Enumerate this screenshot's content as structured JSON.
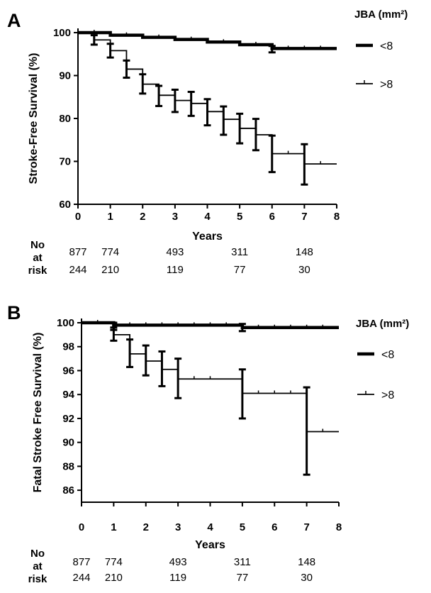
{
  "chart_data": [
    {
      "type": "line",
      "panel_label": "A",
      "xlabel": "Years",
      "ylabel": "Stroke-Free Survival (%)",
      "xlim": [
        0,
        8
      ],
      "ylim": [
        60,
        100
      ],
      "x_ticks": [
        0,
        1,
        2,
        3,
        4,
        5,
        6,
        7,
        8
      ],
      "y_ticks": [
        60,
        70,
        80,
        90,
        100
      ],
      "legend": {
        "title": "JBA (mm²)",
        "position": "right"
      },
      "series": [
        {
          "name": "<8",
          "style": "thick",
          "x": [
            0,
            1,
            2,
            3,
            4,
            5,
            6,
            8
          ],
          "y": [
            100,
            99.4,
            98.9,
            98.4,
            97.8,
            97.2,
            96.3,
            96.3
          ],
          "error": {
            "x": [
              6
            ],
            "lo": [
              95.4
            ],
            "hi": [
              96.9
            ]
          },
          "censor_x": [
            0.5,
            1.5,
            2.5,
            3.5,
            4.5,
            5.5,
            6.5,
            7,
            7.5
          ]
        },
        {
          "name": ">8",
          "style": "thin",
          "x": [
            0,
            0.5,
            1,
            1.5,
            2,
            2.5,
            3,
            3.5,
            4,
            4.5,
            5,
            5.5,
            6,
            7,
            8
          ],
          "y": [
            100,
            98.3,
            95.8,
            91.5,
            88,
            85.4,
            84.2,
            83.5,
            81.6,
            79.8,
            77.7,
            76.2,
            71.8,
            69.4,
            69.4
          ],
          "error": {
            "x": [
              0.5,
              1,
              1.5,
              2,
              2.5,
              3,
              3.5,
              4,
              4.5,
              5,
              5.5,
              6,
              7
            ],
            "lo": [
              97.2,
              94.2,
              89.5,
              85.8,
              82.9,
              81.5,
              80.6,
              78.4,
              76.2,
              74.2,
              72.6,
              67.5,
              64.6
            ],
            "hi": [
              99.4,
              97.4,
              93.5,
              90.3,
              87.6,
              86.7,
              86.2,
              84.5,
              82.8,
              81.1,
              79.9,
              76,
              74
            ]
          },
          "censor_x": [
            6.5,
            7.5
          ]
        }
      ],
      "risk_table": {
        "header": [
          "No",
          "at",
          "risk"
        ],
        "x": [
          0,
          1,
          3,
          5,
          7
        ],
        "rows": [
          [
            "877",
            "774",
            "493",
            "311",
            "148"
          ],
          [
            "244",
            "210",
            "119",
            "77",
            "30"
          ]
        ]
      }
    },
    {
      "type": "line",
      "panel_label": "B",
      "xlabel": "Years",
      "ylabel": "Fatal Stroke Free Survival (%)",
      "xlim": [
        0,
        8
      ],
      "ylim": [
        85,
        100
      ],
      "x_ticks": [
        0,
        1,
        2,
        3,
        4,
        5,
        6,
        7,
        8
      ],
      "y_ticks": [
        86,
        88,
        90,
        92,
        94,
        96,
        98,
        100
      ],
      "legend": {
        "title": "JBA (mm²)",
        "position": "right"
      },
      "series": [
        {
          "name": "<8",
          "style": "thick",
          "x": [
            0,
            1,
            5,
            8
          ],
          "y": [
            100,
            99.8,
            99.6,
            99.6
          ],
          "error": {
            "x": [
              1,
              5
            ],
            "lo": [
              99.4,
              99.3
            ],
            "hi": [
              100,
              99.9
            ]
          },
          "censor_x": [
            0.5,
            1.5,
            2,
            2.5,
            3,
            3.5,
            4,
            4.5,
            5.5,
            6,
            6.5,
            7,
            7.5
          ]
        },
        {
          "name": ">8",
          "style": "thin",
          "x": [
            0,
            1,
            1.5,
            2,
            2.5,
            3,
            5,
            7,
            8
          ],
          "y": [
            100,
            99,
            97.4,
            96.8,
            96.1,
            95.3,
            94.1,
            90.9,
            90.9
          ],
          "error": {
            "x": [
              1,
              1.5,
              2,
              2.5,
              3,
              5,
              7
            ],
            "lo": [
              98.5,
              96.3,
              95.6,
              94.7,
              93.7,
              92,
              87.3
            ],
            "hi": [
              99.6,
              98.6,
              98.1,
              97.6,
              97,
              96.1,
              94.6
            ]
          },
          "censor_x": [
            3.5,
            4,
            5.5,
            6,
            6.5,
            7.5
          ]
        }
      ],
      "risk_table": {
        "header": [
          "No",
          "at",
          "risk"
        ],
        "x": [
          0,
          1,
          3,
          5,
          7
        ],
        "rows": [
          [
            "877",
            "774",
            "493",
            "311",
            "148"
          ],
          [
            "244",
            "210",
            "119",
            "77",
            "30"
          ]
        ]
      }
    }
  ]
}
